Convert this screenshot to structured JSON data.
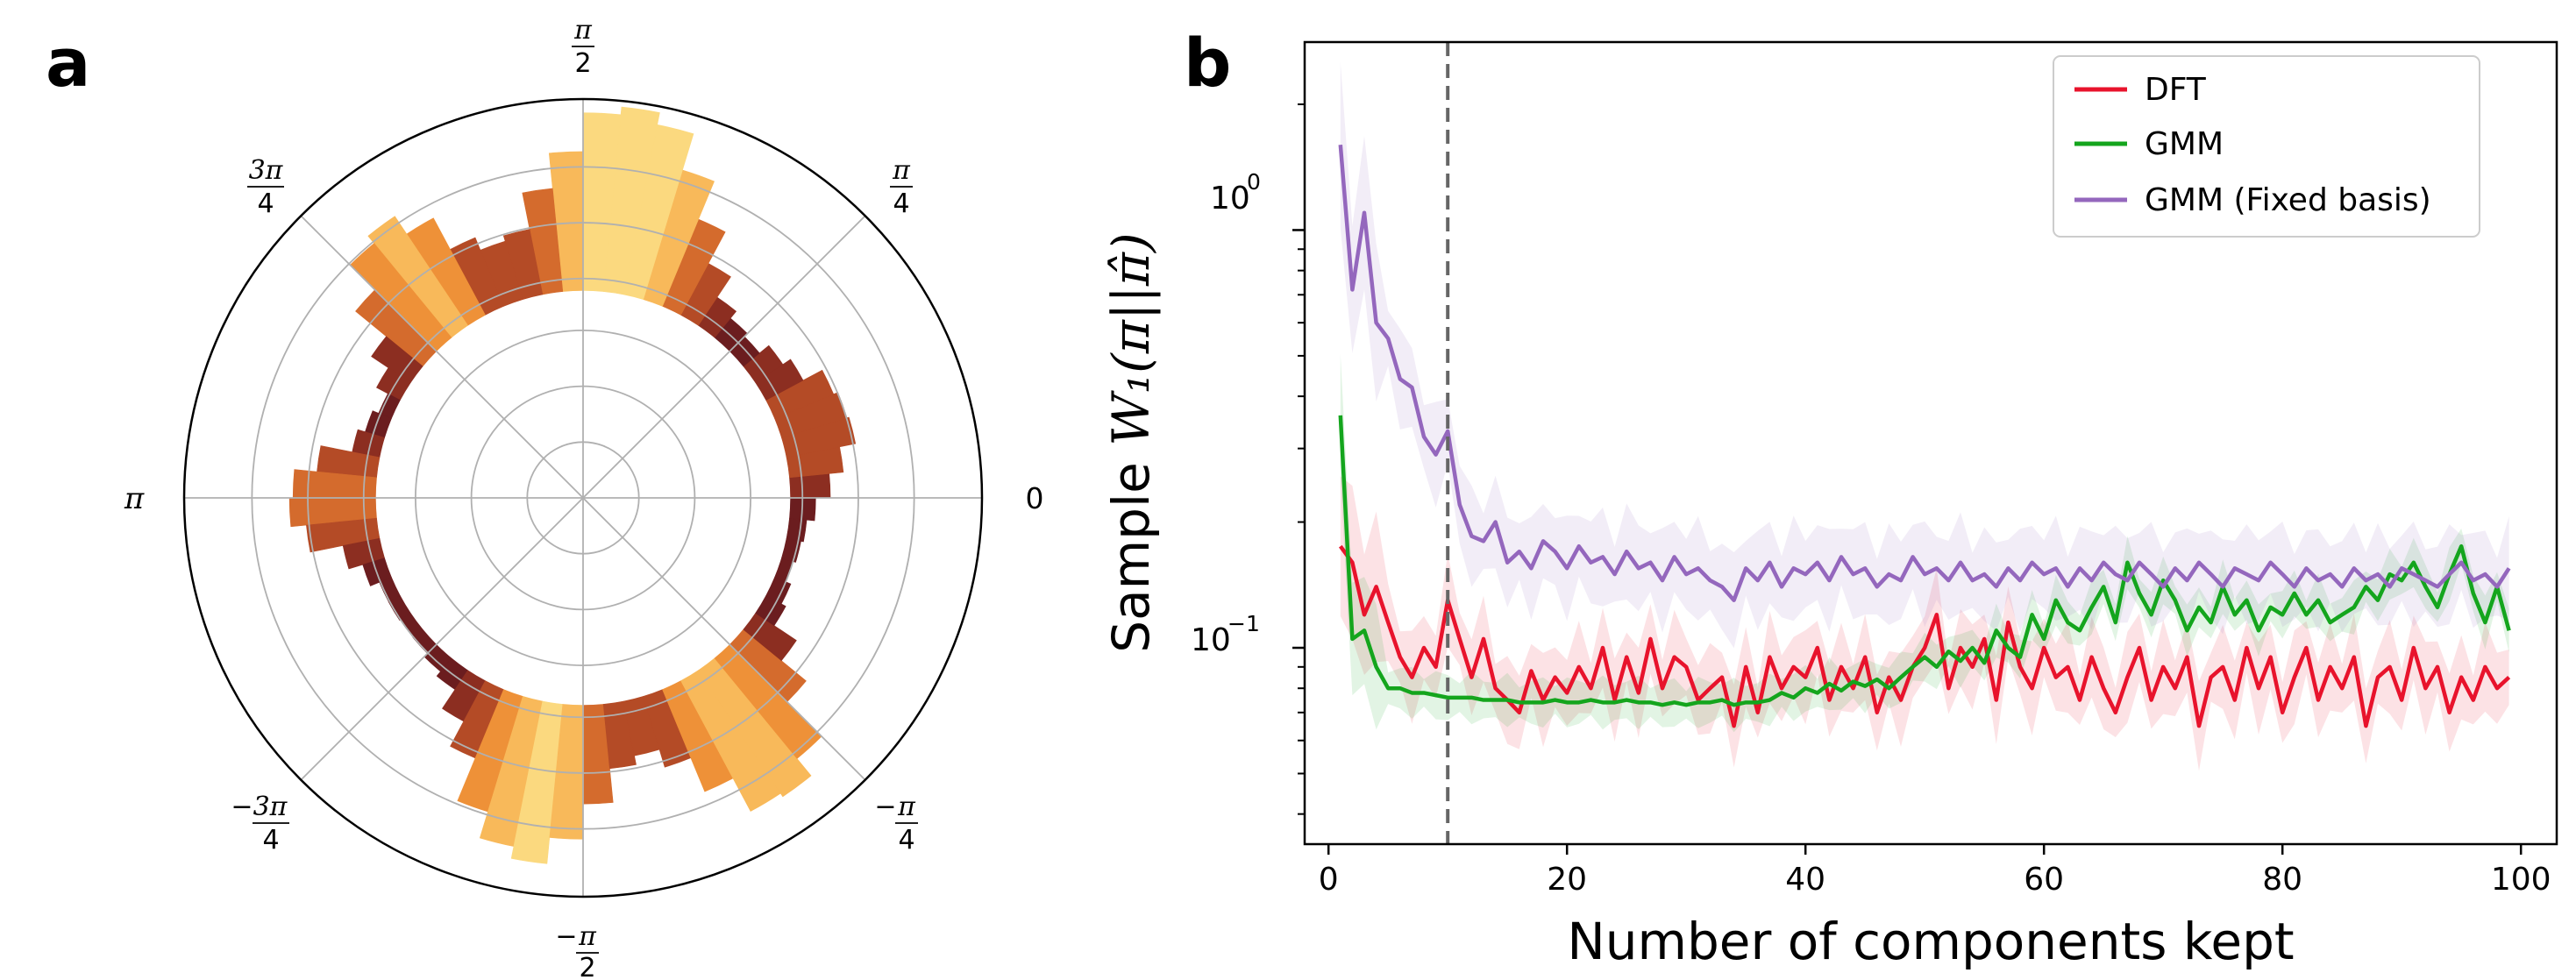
{
  "figure": {
    "panel_a_label": "a",
    "panel_b_label": "b"
  },
  "chart_data": [
    {
      "type": "polar-histogram",
      "panel": "a",
      "theta_tick_labels": {
        "pi_over_2_num": "π",
        "pi_over_2_den": "2",
        "pi_over_4_num": "π",
        "pi_over_4_den": "4",
        "three_pi_over_4_num": "3π",
        "three_pi_over_4_den": "4",
        "pi": "π",
        "zero": "0",
        "neg_three_pi_over_4_num": "3π",
        "neg_three_pi_over_4_den": "4",
        "neg_pi_over_2_num": "π",
        "neg_pi_over_2_den": "2",
        "neg_pi_over_4_num": "π",
        "neg_pi_over_4_den": "4"
      },
      "bins": 64,
      "radial_baseline": 0.52,
      "r_max": 1.0,
      "grid_rings": [
        0.14,
        0.28,
        0.42,
        0.55,
        0.69,
        0.83
      ],
      "colormap": [
        "#6b1d1f",
        "#8c2e21",
        "#b44b26",
        "#d46b2d",
        "#ee9138",
        "#f8b95a",
        "#fbd97f"
      ],
      "peaks": [
        {
          "angle_deg": 82,
          "height": 0.44,
          "width_deg": 14
        },
        {
          "angle_deg": 128,
          "height": 0.3,
          "width_deg": 10
        },
        {
          "angle_deg": 181,
          "height": 0.2,
          "width_deg": 9
        },
        {
          "angle_deg": -100,
          "height": 0.37,
          "width_deg": 12
        },
        {
          "angle_deg": -55,
          "height": 0.36,
          "width_deg": 11
        },
        {
          "angle_deg": 18,
          "height": 0.15,
          "width_deg": 12
        }
      ]
    },
    {
      "type": "line",
      "panel": "b",
      "xlabel": "Number of components kept",
      "ylabel_prefix": "Sample ",
      "ylabel_math": "W₁(π||π̂)",
      "xlim": [
        -2,
        103
      ],
      "ylim_log10": [
        -1.47,
        0.45
      ],
      "yscale": "log",
      "x_ticks": [
        0,
        20,
        40,
        60,
        80,
        100
      ],
      "x_tick_labels": [
        "0",
        "20",
        "40",
        "60",
        "80",
        "100"
      ],
      "y_tick_labels": {
        "major_0_base": "10",
        "major_0_exp": "0",
        "major_m1_base": "10",
        "major_m1_exp": "−1"
      },
      "vline_x": 10,
      "legend_position": "upper right",
      "series": [
        {
          "name": "DFT",
          "color": "#e8132c",
          "values": [
            0.175,
            0.16,
            0.12,
            0.14,
            0.115,
            0.095,
            0.085,
            0.1,
            0.09,
            0.13,
            0.105,
            0.085,
            0.105,
            0.08,
            0.075,
            0.07,
            0.088,
            0.075,
            0.085,
            0.078,
            0.09,
            0.08,
            0.1,
            0.075,
            0.095,
            0.078,
            0.105,
            0.08,
            0.095,
            0.09,
            0.075,
            0.08,
            0.085,
            0.065,
            0.09,
            0.07,
            0.095,
            0.08,
            0.09,
            0.085,
            0.1,
            0.075,
            0.09,
            0.08,
            0.095,
            0.07,
            0.085,
            0.075,
            0.09,
            0.1,
            0.12,
            0.08,
            0.1,
            0.09,
            0.105,
            0.075,
            0.115,
            0.09,
            0.08,
            0.1,
            0.085,
            0.09,
            0.075,
            0.095,
            0.08,
            0.07,
            0.085,
            0.1,
            0.075,
            0.09,
            0.08,
            0.095,
            0.065,
            0.085,
            0.09,
            0.075,
            0.1,
            0.08,
            0.095,
            0.07,
            0.085,
            0.1,
            0.075,
            0.09,
            0.08,
            0.095,
            0.065,
            0.085,
            0.09,
            0.075,
            0.1,
            0.08,
            0.09,
            0.07,
            0.085,
            0.075,
            0.09,
            0.08,
            0.085
          ],
          "band_frac": 0.22
        },
        {
          "name": "GMM",
          "color": "#14a51d",
          "values": [
            0.36,
            0.105,
            0.11,
            0.09,
            0.08,
            0.08,
            0.078,
            0.078,
            0.077,
            0.076,
            0.076,
            0.076,
            0.075,
            0.075,
            0.075,
            0.074,
            0.074,
            0.074,
            0.075,
            0.074,
            0.074,
            0.075,
            0.074,
            0.074,
            0.075,
            0.074,
            0.074,
            0.073,
            0.074,
            0.073,
            0.074,
            0.074,
            0.075,
            0.073,
            0.074,
            0.074,
            0.075,
            0.078,
            0.076,
            0.08,
            0.078,
            0.082,
            0.079,
            0.083,
            0.081,
            0.084,
            0.08,
            0.085,
            0.09,
            0.095,
            0.09,
            0.098,
            0.093,
            0.1,
            0.092,
            0.11,
            0.1,
            0.095,
            0.12,
            0.105,
            0.13,
            0.115,
            0.11,
            0.125,
            0.14,
            0.115,
            0.16,
            0.135,
            0.12,
            0.145,
            0.13,
            0.11,
            0.125,
            0.115,
            0.14,
            0.12,
            0.13,
            0.11,
            0.125,
            0.12,
            0.135,
            0.12,
            0.13,
            0.115,
            0.12,
            0.125,
            0.14,
            0.13,
            0.15,
            0.145,
            0.16,
            0.14,
            0.125,
            0.15,
            0.175,
            0.135,
            0.115,
            0.14,
            0.11
          ],
          "band_frac": 0.12
        },
        {
          "name": "GMM (Fixed basis)",
          "color": "#9467bd",
          "values": [
            1.6,
            0.72,
            1.1,
            0.6,
            0.55,
            0.44,
            0.42,
            0.32,
            0.29,
            0.33,
            0.22,
            0.185,
            0.18,
            0.2,
            0.16,
            0.17,
            0.155,
            0.18,
            0.17,
            0.155,
            0.175,
            0.16,
            0.165,
            0.15,
            0.17,
            0.155,
            0.16,
            0.145,
            0.165,
            0.15,
            0.155,
            0.145,
            0.14,
            0.13,
            0.155,
            0.145,
            0.16,
            0.14,
            0.155,
            0.15,
            0.16,
            0.145,
            0.165,
            0.15,
            0.155,
            0.14,
            0.15,
            0.145,
            0.165,
            0.15,
            0.155,
            0.145,
            0.16,
            0.145,
            0.15,
            0.14,
            0.155,
            0.145,
            0.16,
            0.15,
            0.155,
            0.14,
            0.155,
            0.145,
            0.16,
            0.15,
            0.145,
            0.16,
            0.15,
            0.14,
            0.155,
            0.145,
            0.16,
            0.15,
            0.14,
            0.155,
            0.15,
            0.145,
            0.16,
            0.15,
            0.14,
            0.155,
            0.145,
            0.15,
            0.14,
            0.155,
            0.145,
            0.15,
            0.14,
            0.155,
            0.15,
            0.145,
            0.14,
            0.15,
            0.16,
            0.145,
            0.15,
            0.14,
            0.155
          ],
          "band_frac": 0.25
        }
      ]
    }
  ]
}
